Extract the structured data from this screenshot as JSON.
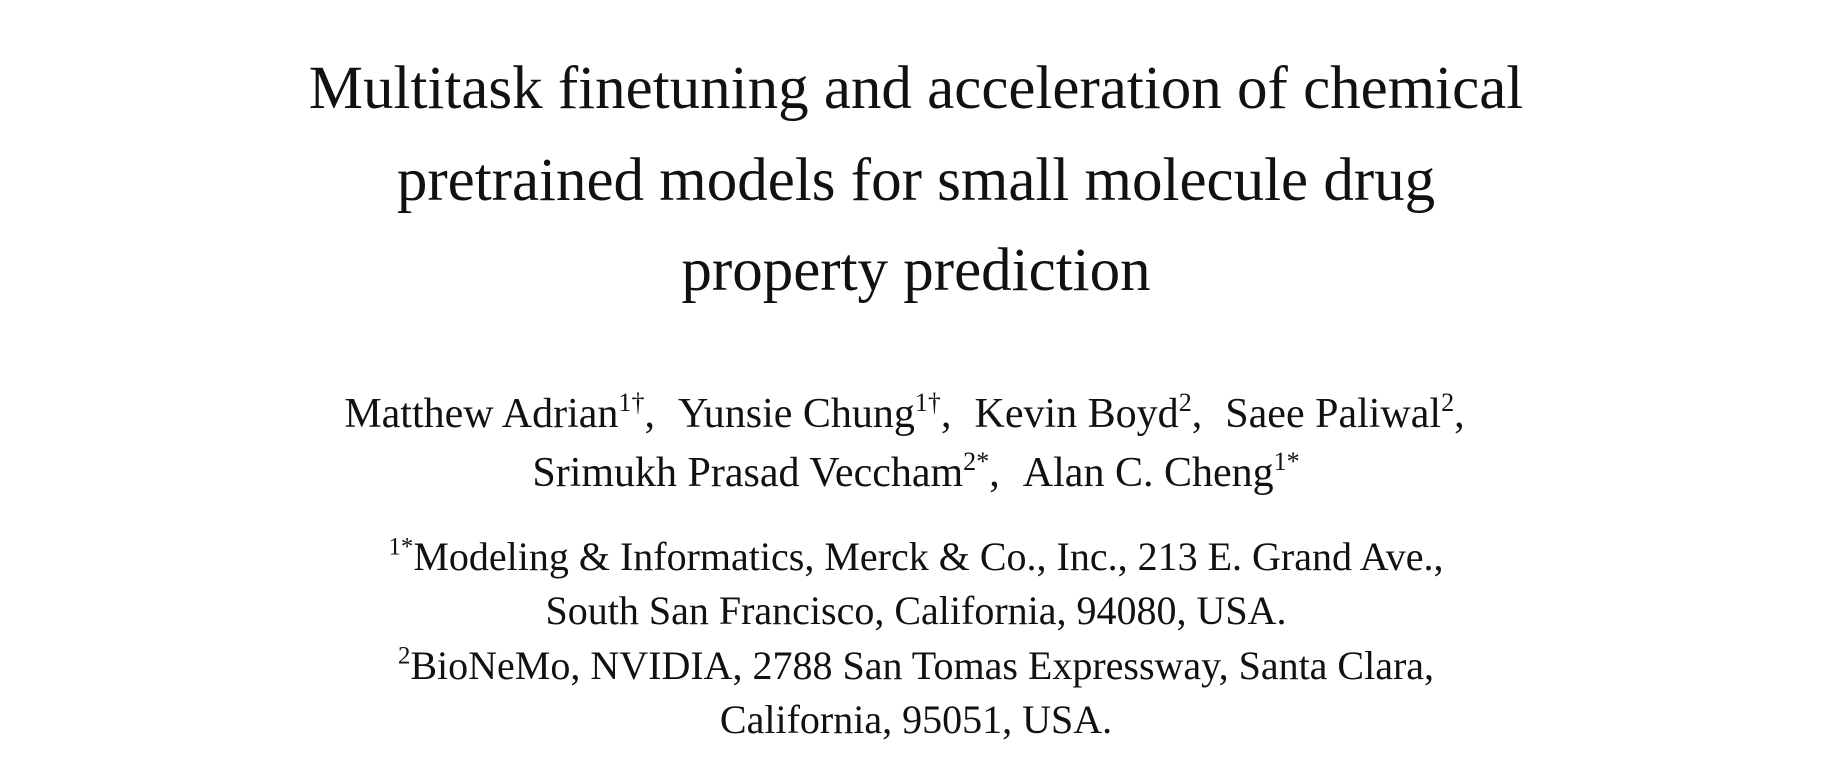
{
  "header": {
    "title_lines": [
      "Multitask finetuning and acceleration of chemical",
      "pretrained models for small molecule drug",
      "property prediction"
    ],
    "author_lines": [
      [
        {
          "name": "Matthew Adrian",
          "mark": "1†",
          "sep": ","
        },
        {
          "name": "Yunsie Chung",
          "mark": "1†",
          "sep": ","
        },
        {
          "name": "Kevin Boyd",
          "mark": "2",
          "sep": ","
        },
        {
          "name": "Saee Paliwal",
          "mark": "2",
          "sep": ","
        }
      ],
      [
        {
          "name": "Srimukh Prasad Veccham",
          "mark": "2*",
          "sep": ","
        },
        {
          "name": "Alan C. Cheng",
          "mark": "1*"
        }
      ]
    ],
    "affiliations": [
      {
        "mark": "1*",
        "lines": [
          "Modeling & Informatics, Merck & Co., Inc., 213 E. Grand Ave.,",
          "South San Francisco, California, 94080, USA."
        ]
      },
      {
        "mark": "2",
        "lines": [
          "BioNeMo, NVIDIA, 2788 San Tomas Expressway, Santa Clara,",
          "California, 95051, USA."
        ]
      }
    ]
  }
}
